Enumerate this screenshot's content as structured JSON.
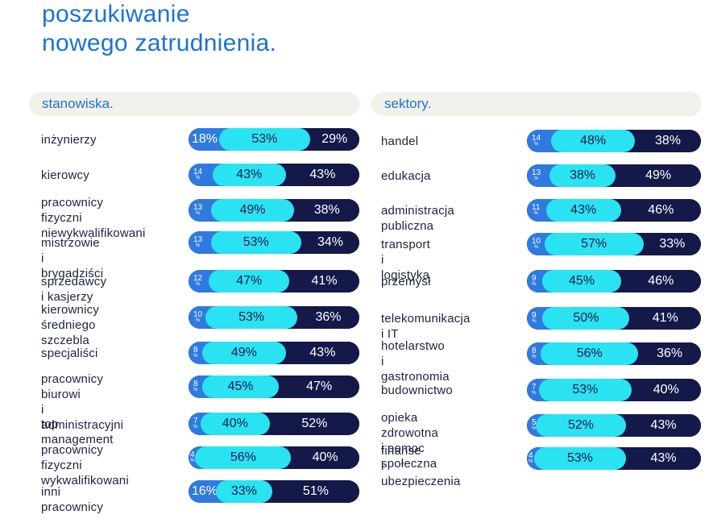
{
  "title": [
    "poszukiwanie",
    "nowego zatrudnienia."
  ],
  "chart_data": [
    {
      "type": "bar",
      "stacked": true,
      "orientation": "horizontal",
      "title": "stanowiska.",
      "categories": [
        [
          "inżynierzy"
        ],
        [
          "kierowcy"
        ],
        [
          "pracownicy fizyczni",
          "niewykwalifikowani"
        ],
        [
          "mistrzowie i brygadziści"
        ],
        [
          "sprzedawcy i kasjerzy"
        ],
        [
          "kierownicy",
          "średniego szczebla"
        ],
        [
          "specjaliści"
        ],
        [
          "pracownicy biurowi",
          "i administracyjni"
        ],
        [
          "top management"
        ],
        [
          "pracownicy fizyczni",
          "wykwalifikowani"
        ],
        [
          "inni pracownicy"
        ]
      ],
      "series": [
        {
          "values": [
            18,
            14,
            13,
            13,
            12,
            10,
            8,
            8,
            7,
            4,
            16
          ],
          "color": "#2f7ae0"
        },
        {
          "values": [
            53,
            43,
            49,
            53,
            47,
            53,
            49,
            45,
            40,
            56,
            33
          ],
          "color": "#29e3f2"
        },
        {
          "values": [
            29,
            43,
            38,
            34,
            41,
            36,
            43,
            47,
            52,
            40,
            51
          ],
          "color": "#14194a"
        }
      ],
      "unit": "%"
    },
    {
      "type": "bar",
      "stacked": true,
      "orientation": "horizontal",
      "title": "sektory.",
      "categories": [
        [
          "handel"
        ],
        [
          "edukacja"
        ],
        [
          "administracja publiczna"
        ],
        [
          "transport i logistyka"
        ],
        [
          "przemysł"
        ],
        [
          "telekomunikacja i IT"
        ],
        [
          "hotelarstwo",
          "i gastronomia"
        ],
        [
          "budownictwo"
        ],
        [
          "opieka zdrowotna",
          "i pomoc społeczna"
        ],
        [
          "finanse",
          "i ubezpieczenia"
        ]
      ],
      "series": [
        {
          "values": [
            14,
            13,
            11,
            10,
            9,
            9,
            8,
            7,
            5,
            4
          ],
          "color": "#2f7ae0"
        },
        {
          "values": [
            48,
            38,
            43,
            57,
            45,
            50,
            56,
            53,
            52,
            53
          ],
          "color": "#29e3f2"
        },
        {
          "values": [
            38,
            49,
            46,
            33,
            46,
            41,
            36,
            40,
            43,
            43
          ],
          "color": "#14194a"
        }
      ],
      "unit": "%"
    }
  ]
}
